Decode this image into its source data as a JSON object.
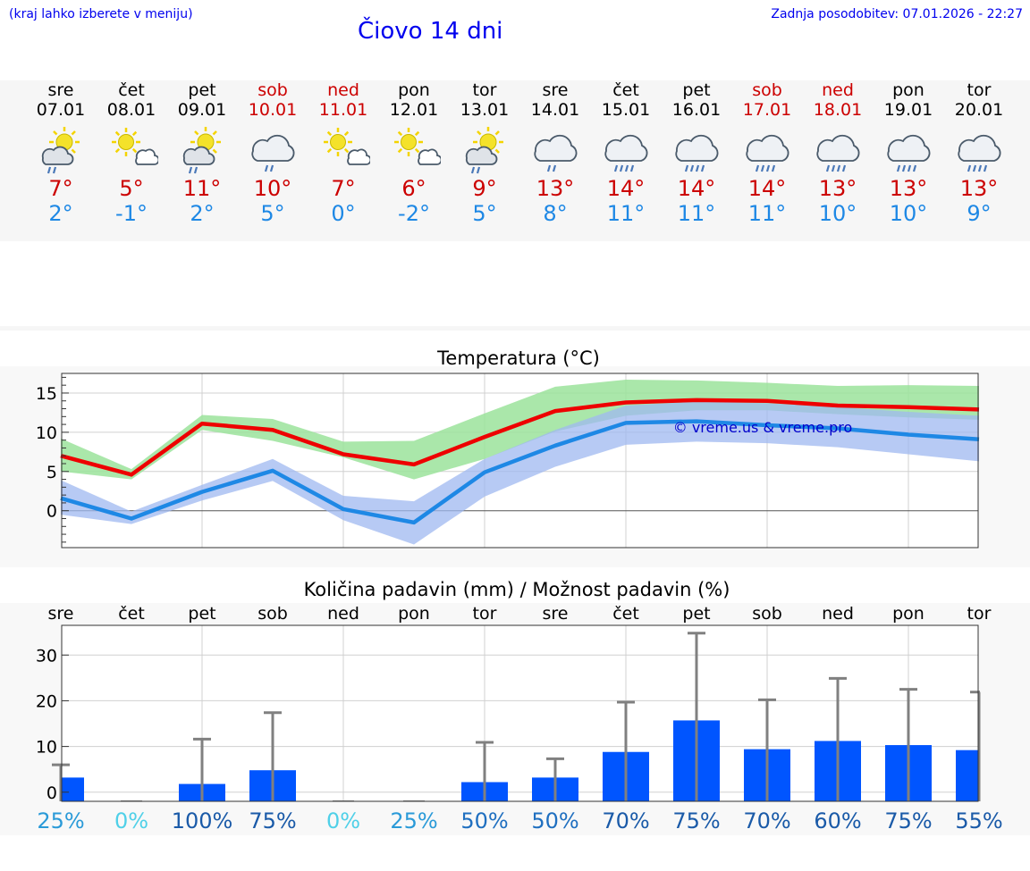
{
  "header": {
    "menu_hint": "(kraj lahko izberete v meniju)",
    "last_update": "Zadnja posodobitev: 07.01.2026 - 22:27",
    "title": "Čiovo 14 dni"
  },
  "colors": {
    "max_line": "#ee0000",
    "min_line": "#1e88e5",
    "max_band": "#9be39b",
    "min_band": "#9fb8f0",
    "bar": "#0055ff",
    "whisker": "#808080",
    "weekend": "#cc0000",
    "watermark": "#0000cc"
  },
  "days": [
    {
      "name": "sre",
      "date": "07.01",
      "weekend": false,
      "icon": "partly-sunny-rain-icon",
      "max": "7°",
      "min": "2°"
    },
    {
      "name": "čet",
      "date": "08.01",
      "weekend": false,
      "icon": "sun-cloud-icon",
      "max": "5°",
      "min": "-1°"
    },
    {
      "name": "pet",
      "date": "09.01",
      "weekend": false,
      "icon": "partly-sunny-rain-icon",
      "max": "11°",
      "min": "2°"
    },
    {
      "name": "sob",
      "date": "10.01",
      "weekend": true,
      "icon": "cloud-rain-icon",
      "max": "10°",
      "min": "5°"
    },
    {
      "name": "ned",
      "date": "11.01",
      "weekend": true,
      "icon": "sun-cloud-icon",
      "max": "7°",
      "min": "0°"
    },
    {
      "name": "pon",
      "date": "12.01",
      "weekend": false,
      "icon": "sun-cloud-icon",
      "max": "6°",
      "min": "-2°"
    },
    {
      "name": "tor",
      "date": "13.01",
      "weekend": false,
      "icon": "partly-sunny-rain-icon",
      "max": "9°",
      "min": "5°"
    },
    {
      "name": "sre",
      "date": "14.01",
      "weekend": false,
      "icon": "cloud-rain-icon",
      "max": "13°",
      "min": "8°"
    },
    {
      "name": "čet",
      "date": "15.01",
      "weekend": false,
      "icon": "cloud-heavy-rain-icon",
      "max": "14°",
      "min": "11°"
    },
    {
      "name": "pet",
      "date": "16.01",
      "weekend": false,
      "icon": "cloud-heavy-rain-icon",
      "max": "14°",
      "min": "11°"
    },
    {
      "name": "sob",
      "date": "17.01",
      "weekend": true,
      "icon": "cloud-heavy-rain-icon",
      "max": "14°",
      "min": "11°"
    },
    {
      "name": "ned",
      "date": "18.01",
      "weekend": true,
      "icon": "cloud-heavy-rain-icon",
      "max": "13°",
      "min": "10°"
    },
    {
      "name": "pon",
      "date": "19.01",
      "weekend": false,
      "icon": "cloud-heavy-rain-icon",
      "max": "13°",
      "min": "10°"
    },
    {
      "name": "tor",
      "date": "20.01",
      "weekend": false,
      "icon": "cloud-heavy-rain-icon",
      "max": "13°",
      "min": "9°"
    }
  ],
  "chart_data": [
    {
      "type": "line",
      "title": "Temperatura (°C)",
      "ylim": [
        -4.7,
        17.5
      ],
      "yticks": [
        "15",
        "10",
        "5",
        "0"
      ],
      "ytick_values": [
        15,
        10,
        5,
        0
      ],
      "watermark": "© vreme.us & vreme.pro",
      "x": [
        0,
        1,
        2,
        3,
        4,
        5,
        6,
        7,
        8,
        9,
        10,
        11,
        12,
        13
      ],
      "series": [
        {
          "name": "max",
          "values": [
            7.0,
            4.6,
            11.1,
            10.3,
            7.2,
            5.9,
            9.4,
            12.7,
            13.8,
            14.1,
            14.0,
            13.4,
            13.2,
            12.9
          ],
          "band_upper": [
            9.2,
            5.3,
            12.2,
            11.7,
            8.8,
            8.9,
            12.4,
            15.8,
            16.7,
            16.6,
            16.3,
            15.9,
            16.0,
            15.9
          ],
          "band_lower": [
            5.0,
            4.0,
            10.3,
            8.9,
            6.8,
            4.0,
            6.6,
            10.1,
            12.1,
            12.8,
            12.8,
            12.3,
            11.9,
            11.6
          ]
        },
        {
          "name": "min",
          "values": [
            1.6,
            -1.0,
            2.4,
            5.1,
            0.2,
            -1.5,
            4.9,
            8.3,
            11.2,
            11.4,
            10.9,
            10.5,
            9.7,
            9.1
          ],
          "band_upper": [
            3.9,
            -0.1,
            3.3,
            6.6,
            1.9,
            1.2,
            6.6,
            10.3,
            13.4,
            13.9,
            13.7,
            13.2,
            12.6,
            12.1
          ],
          "band_lower": [
            -0.5,
            -1.7,
            1.3,
            3.8,
            -1.2,
            -4.3,
            1.8,
            5.6,
            8.4,
            8.8,
            8.6,
            8.1,
            7.2,
            6.3
          ]
        }
      ]
    },
    {
      "type": "bar",
      "title": "Količina padavin (mm) / Možnost padavin (%)",
      "categories": [
        "sre",
        "čet",
        "pet",
        "sob",
        "ned",
        "pon",
        "tor",
        "sre",
        "čet",
        "pet",
        "sob",
        "ned",
        "pon",
        "tor"
      ],
      "values": [
        3.2,
        0,
        1.8,
        4.8,
        0,
        0,
        2.2,
        3.2,
        8.8,
        15.7,
        9.4,
        11.2,
        10.3,
        9.2
      ],
      "whisker_high": [
        6.0,
        0,
        11.6,
        17.4,
        0,
        0,
        10.9,
        7.3,
        19.7,
        34.8,
        20.2,
        24.9,
        22.5,
        21.9
      ],
      "ylim": [
        -2,
        36.5
      ],
      "yticks": [
        "30",
        "20",
        "10",
        "0"
      ],
      "ytick_values": [
        30,
        20,
        10,
        0
      ],
      "probability": [
        "25%",
        "0%",
        "100%",
        "75%",
        "0%",
        "25%",
        "50%",
        "50%",
        "70%",
        "75%",
        "70%",
        "60%",
        "75%",
        "55%"
      ],
      "probability_values": [
        25,
        0,
        100,
        75,
        0,
        25,
        50,
        50,
        70,
        75,
        70,
        60,
        75,
        55
      ]
    }
  ]
}
